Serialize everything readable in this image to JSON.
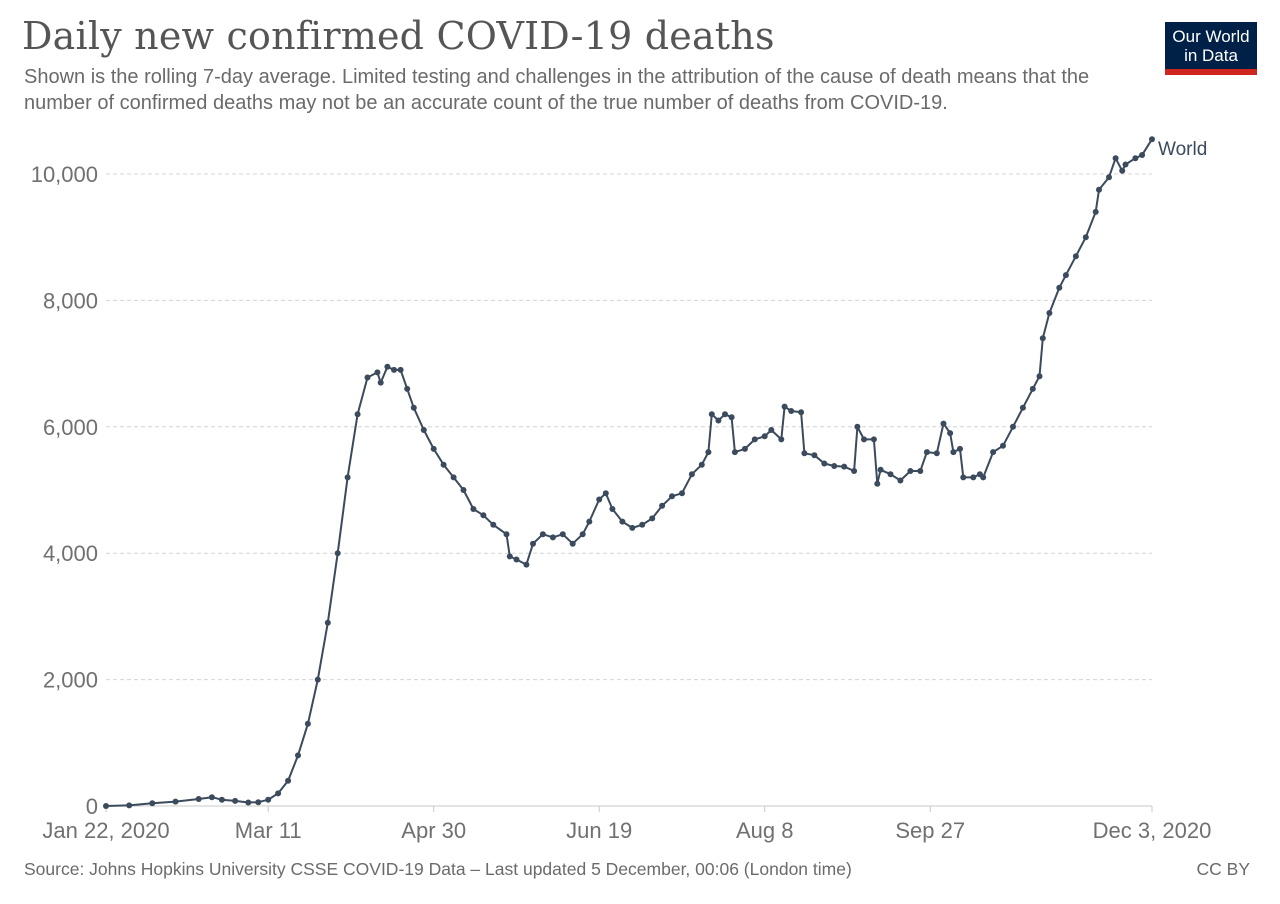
{
  "title": "Daily new confirmed COVID-19 deaths",
  "subtitle": "Shown is the rolling 7-day average. Limited testing and challenges in the attribution of the cause of death means that the number of confirmed deaths may not be an accurate count of the true number of deaths from COVID-19.",
  "logo": {
    "line1": "Our World",
    "line2": "in Data"
  },
  "footer": {
    "source": "Source: Johns Hopkins University CSSE COVID-19 Data – Last updated 5 December, 00:06 (London time)",
    "license": "CC BY"
  },
  "colors": {
    "series": "#3b4a5c",
    "grid": "#d4d4d4",
    "logo_bg": "#002147",
    "logo_bar": "#ce261e"
  },
  "chart_data": {
    "type": "line",
    "title": "Daily new confirmed COVID-19 deaths",
    "xlabel": "",
    "ylabel": "",
    "x_ticks": [
      "Jan 22, 2020",
      "Mar 11",
      "Apr 30",
      "Jun 19",
      "Aug 8",
      "Sep 27",
      "Dec 3, 2020"
    ],
    "y_ticks": [
      "0",
      "2,000",
      "4,000",
      "6,000",
      "8,000",
      "10,000"
    ],
    "ylim": [
      0,
      10800
    ],
    "xlim": [
      "2020-01-22",
      "2020-12-03"
    ],
    "grid": "horizontal dashed",
    "series": [
      {
        "name": "World",
        "color": "#3b4a5c",
        "points": [
          [
            "2020-01-22",
            0
          ],
          [
            "2020-01-29",
            10
          ],
          [
            "2020-02-05",
            45
          ],
          [
            "2020-02-12",
            70
          ],
          [
            "2020-02-19",
            110
          ],
          [
            "2020-02-23",
            140
          ],
          [
            "2020-02-26",
            100
          ],
          [
            "2020-03-01",
            80
          ],
          [
            "2020-03-05",
            55
          ],
          [
            "2020-03-08",
            60
          ],
          [
            "2020-03-11",
            100
          ],
          [
            "2020-03-14",
            200
          ],
          [
            "2020-03-17",
            400
          ],
          [
            "2020-03-20",
            800
          ],
          [
            "2020-03-23",
            1300
          ],
          [
            "2020-03-26",
            2000
          ],
          [
            "2020-03-29",
            2900
          ],
          [
            "2020-04-01",
            4000
          ],
          [
            "2020-04-04",
            5200
          ],
          [
            "2020-04-07",
            6200
          ],
          [
            "2020-04-10",
            6780
          ],
          [
            "2020-04-13",
            6860
          ],
          [
            "2020-04-14",
            6700
          ],
          [
            "2020-04-16",
            6950
          ],
          [
            "2020-04-18",
            6900
          ],
          [
            "2020-04-20",
            6900
          ],
          [
            "2020-04-22",
            6600
          ],
          [
            "2020-04-24",
            6300
          ],
          [
            "2020-04-27",
            5950
          ],
          [
            "2020-04-30",
            5650
          ],
          [
            "2020-05-03",
            5400
          ],
          [
            "2020-05-06",
            5200
          ],
          [
            "2020-05-09",
            5000
          ],
          [
            "2020-05-12",
            4700
          ],
          [
            "2020-05-15",
            4600
          ],
          [
            "2020-05-18",
            4450
          ],
          [
            "2020-05-22",
            4300
          ],
          [
            "2020-05-23",
            3950
          ],
          [
            "2020-05-25",
            3900
          ],
          [
            "2020-05-28",
            3820
          ],
          [
            "2020-05-30",
            4150
          ],
          [
            "2020-06-02",
            4300
          ],
          [
            "2020-06-05",
            4250
          ],
          [
            "2020-06-08",
            4300
          ],
          [
            "2020-06-11",
            4150
          ],
          [
            "2020-06-14",
            4300
          ],
          [
            "2020-06-16",
            4500
          ],
          [
            "2020-06-19",
            4850
          ],
          [
            "2020-06-21",
            4950
          ],
          [
            "2020-06-23",
            4700
          ],
          [
            "2020-06-26",
            4500
          ],
          [
            "2020-06-29",
            4400
          ],
          [
            "2020-07-02",
            4450
          ],
          [
            "2020-07-05",
            4550
          ],
          [
            "2020-07-08",
            4750
          ],
          [
            "2020-07-11",
            4900
          ],
          [
            "2020-07-14",
            4950
          ],
          [
            "2020-07-17",
            5250
          ],
          [
            "2020-07-20",
            5400
          ],
          [
            "2020-07-22",
            5600
          ],
          [
            "2020-07-23",
            6200
          ],
          [
            "2020-07-25",
            6100
          ],
          [
            "2020-07-27",
            6200
          ],
          [
            "2020-07-29",
            6150
          ],
          [
            "2020-07-30",
            5600
          ],
          [
            "2020-08-02",
            5650
          ],
          [
            "2020-08-05",
            5800
          ],
          [
            "2020-08-08",
            5850
          ],
          [
            "2020-08-10",
            5950
          ],
          [
            "2020-08-13",
            5800
          ],
          [
            "2020-08-14",
            6320
          ],
          [
            "2020-08-16",
            6250
          ],
          [
            "2020-08-19",
            6230
          ],
          [
            "2020-08-20",
            5580
          ],
          [
            "2020-08-23",
            5550
          ],
          [
            "2020-08-26",
            5420
          ],
          [
            "2020-08-29",
            5380
          ],
          [
            "2020-09-01",
            5370
          ],
          [
            "2020-09-04",
            5300
          ],
          [
            "2020-09-05",
            6000
          ],
          [
            "2020-09-07",
            5800
          ],
          [
            "2020-09-10",
            5800
          ],
          [
            "2020-09-11",
            5100
          ],
          [
            "2020-09-12",
            5320
          ],
          [
            "2020-09-15",
            5250
          ],
          [
            "2020-09-18",
            5150
          ],
          [
            "2020-09-21",
            5300
          ],
          [
            "2020-09-24",
            5300
          ],
          [
            "2020-09-26",
            5600
          ],
          [
            "2020-09-29",
            5580
          ],
          [
            "2020-10-01",
            6050
          ],
          [
            "2020-10-03",
            5900
          ],
          [
            "2020-10-04",
            5600
          ],
          [
            "2020-10-06",
            5650
          ],
          [
            "2020-10-07",
            5200
          ],
          [
            "2020-10-10",
            5200
          ],
          [
            "2020-10-12",
            5250
          ],
          [
            "2020-10-13",
            5200
          ],
          [
            "2020-10-16",
            5600
          ],
          [
            "2020-10-19",
            5700
          ],
          [
            "2020-10-22",
            6000
          ],
          [
            "2020-10-25",
            6300
          ],
          [
            "2020-10-28",
            6600
          ],
          [
            "2020-10-30",
            6800
          ],
          [
            "2020-10-31",
            7400
          ],
          [
            "2020-11-02",
            7800
          ],
          [
            "2020-11-05",
            8200
          ],
          [
            "2020-11-07",
            8400
          ],
          [
            "2020-11-10",
            8700
          ],
          [
            "2020-11-13",
            9000
          ],
          [
            "2020-11-16",
            9400
          ],
          [
            "2020-11-17",
            9750
          ],
          [
            "2020-11-20",
            9950
          ],
          [
            "2020-11-22",
            10250
          ],
          [
            "2020-11-24",
            10050
          ],
          [
            "2020-11-25",
            10150
          ],
          [
            "2020-11-28",
            10250
          ],
          [
            "2020-11-30",
            10300
          ],
          [
            "2020-12-03",
            10550
          ]
        ]
      }
    ]
  }
}
